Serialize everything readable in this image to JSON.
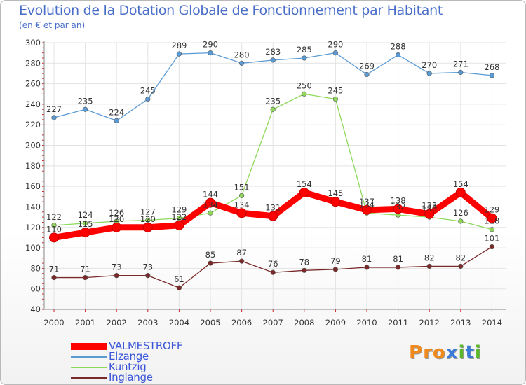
{
  "title": "Evolution de la Dotation Globale de Fonctionnement par Habitant",
  "subtitle": "(en € et par an)",
  "logo": {
    "letters": [
      "P",
      "r",
      "o",
      "x",
      "i",
      "t",
      "i"
    ],
    "colors": [
      "#f08a1c",
      "#f08a1c",
      "#f08a1c",
      "#3a7ad8",
      "#5cb82a",
      "#3a7ad8",
      "#5cb82a"
    ]
  },
  "chart_data": {
    "type": "line",
    "title": "Evolution de la Dotation Globale de Fonctionnement par Habitant",
    "subtitle": "(en € et par an)",
    "x": [
      "2000",
      "2001",
      "2002",
      "2003",
      "2004",
      "2005",
      "2006",
      "2007",
      "2008",
      "2009",
      "2010",
      "2011",
      "2012",
      "2013",
      "2014"
    ],
    "ylim": [
      40,
      300
    ],
    "yticks": [
      40,
      60,
      80,
      100,
      120,
      140,
      160,
      180,
      200,
      220,
      240,
      260,
      280,
      300
    ],
    "series": [
      {
        "name": "VALMESTROFF",
        "color": "#ff0000",
        "values": [
          110,
          115,
          120,
          120,
          122,
          144,
          134,
          131,
          154,
          145,
          137,
          138,
          133,
          154,
          129
        ]
      },
      {
        "name": "Elzange",
        "color": "#5b9bd5",
        "values": [
          227,
          235,
          224,
          245,
          289,
          290,
          280,
          283,
          285,
          290,
          269,
          288,
          270,
          271,
          268
        ]
      },
      {
        "name": "Kuntzig",
        "color": "#8ed85a",
        "values": [
          122,
          124,
          126,
          127,
          129,
          134,
          151,
          235,
          250,
          245,
          134,
          132,
          130,
          126,
          118
        ]
      },
      {
        "name": "Inglange",
        "color": "#7a2a2a",
        "values": [
          71,
          71,
          73,
          73,
          61,
          85,
          87,
          76,
          78,
          79,
          81,
          81,
          82,
          82,
          101
        ]
      }
    ]
  }
}
